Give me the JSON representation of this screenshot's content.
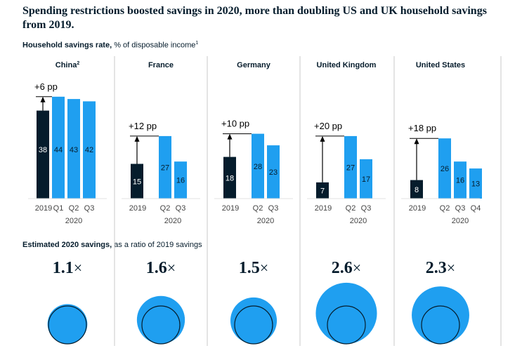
{
  "headline": "Spending restrictions boosted savings in 2020, more than doubling US and UK household savings from 2019.",
  "savings_rate": {
    "label_bold": "Household savings rate,",
    "label_rest": " % of disposable income",
    "footnote": "1"
  },
  "ratio": {
    "label_bold": "Estimated 2020 savings,",
    "label_rest": " as a ratio of 2019 savings"
  },
  "colors": {
    "dark": "#051c2c",
    "accent": "#1f9ff0",
    "divider": "#c8c8c8"
  },
  "chart_data": {
    "type": "bar",
    "title": "Household savings rate, % of disposable income",
    "ylabel": "% of disposable income",
    "ylim": [
      0,
      50
    ],
    "panels": [
      {
        "country": "China",
        "footnote": "2",
        "categories": [
          "2019",
          "Q1",
          "Q2",
          "Q3"
        ],
        "values": [
          38,
          44,
          43,
          42
        ],
        "year_label": "2020",
        "change_label": "+6 pp",
        "ratio_label": "1.1",
        "ratio": 1.1
      },
      {
        "country": "France",
        "footnote": "",
        "categories": [
          "2019",
          "Q2",
          "Q3"
        ],
        "values": [
          15,
          27,
          16
        ],
        "year_label": "2020",
        "change_label": "+12 pp",
        "ratio_label": "1.6",
        "ratio": 1.6
      },
      {
        "country": "Germany",
        "footnote": "",
        "categories": [
          "2019",
          "Q2",
          "Q3"
        ],
        "values": [
          18,
          28,
          23
        ],
        "year_label": "2020",
        "change_label": "+10 pp",
        "ratio_label": "1.5",
        "ratio": 1.5
      },
      {
        "country": "United Kingdom",
        "footnote": "",
        "categories": [
          "2019",
          "Q2",
          "Q3"
        ],
        "values": [
          7,
          27,
          17
        ],
        "year_label": "2020",
        "change_label": "+20 pp",
        "ratio_label": "2.6",
        "ratio": 2.6
      },
      {
        "country": "United States",
        "footnote": "",
        "categories": [
          "2019",
          "Q2",
          "Q3",
          "Q4"
        ],
        "values": [
          8,
          26,
          16,
          13
        ],
        "year_label": "2020",
        "change_label": "+18 pp",
        "ratio_label": "2.3",
        "ratio": 2.3
      }
    ],
    "ratio_suffix": "×"
  }
}
